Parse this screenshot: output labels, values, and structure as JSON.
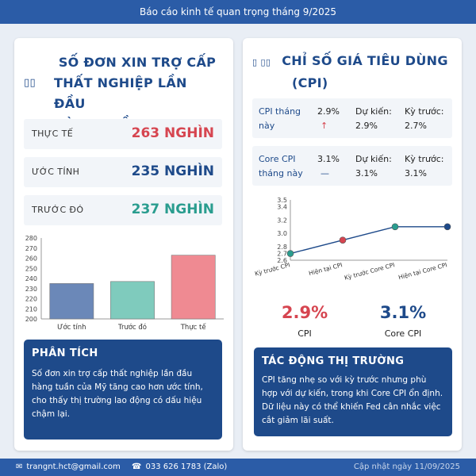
{
  "banner": {
    "title": "Báo cáo kinh tế quan trọng tháng 9/2025"
  },
  "left": {
    "title_line1": "SỐ ĐƠN XIN TRỢ CẤP",
    "title_line2": "THẤT NGHIỆP LẦN ĐẦU",
    "title_line3": "HÀNG TUẦN",
    "title_icon": "▯▯",
    "stats": [
      {
        "label": "THỰC TẾ",
        "value": "263 NGHÌN",
        "color": "#d64550"
      },
      {
        "label": "ƯỚC TÍNH",
        "value": "235 NGHÌN",
        "color": "#1e4a8a"
      },
      {
        "label": "TRƯỚC ĐÓ",
        "value": "237 NGHÌN",
        "color": "#2a9d8f"
      }
    ],
    "analysis": {
      "header": "PHÂN TÍCH",
      "text": "Số đơn xin trợ cấp thất nghiệp lần đầu hàng tuần của Mỹ tăng cao hơn ước tính, cho thấy thị trường lao động có dấu hiệu chậm lại."
    }
  },
  "right": {
    "title_line1": "CHỈ SỐ GIÁ TIÊU DÙNG",
    "title_line2": "(CPI)",
    "title_icon": "▯ ▯▯",
    "cpi_rows": [
      {
        "label": "CPI tháng này",
        "value": "2.9%",
        "trend": "↑",
        "expected": "Dự kiến: 2.9%",
        "previous": "Kỳ trước: 2.7%"
      },
      {
        "label": "Core CPI tháng này",
        "value": "3.1%",
        "trend": "—",
        "expected": "Dự kiến: 3.1%",
        "previous": "Kỳ trước: 3.1%"
      }
    ],
    "big_cpi": {
      "value": "2.9%",
      "label": "CPI",
      "color": "#d64550"
    },
    "big_core": {
      "value": "3.1%",
      "label": "Core CPI",
      "color": "#1e4a8a"
    },
    "impact": {
      "header": "TÁC ĐỘNG THỊ TRƯỜNG",
      "text": "CPI tăng nhẹ so với kỳ trước nhưng phù hợp với dự kiến, trong khi Core CPI ổn định. Dữ liệu này có thể khiến Fed cân nhắc việc cắt giảm lãi suất."
    }
  },
  "footer": {
    "email": "trangnt.hct@gmail.com",
    "phone": "033 626 1783 (Zalo)",
    "updated": "Cập nhật ngày 11/09/2025",
    "email_icon": "envelope-icon",
    "phone_icon": "phone-icon"
  },
  "chart_data": [
    {
      "type": "bar",
      "categories": [
        "Ước tính",
        "Trước đó",
        "Thực tế"
      ],
      "values": [
        235,
        237,
        263
      ],
      "colors": [
        "#6b88b8",
        "#7fcbbd",
        "#ef8a92"
      ],
      "ylim": [
        200,
        280
      ],
      "yticks": [
        200,
        210,
        220,
        230,
        240,
        250,
        260,
        270,
        280
      ],
      "grid": false,
      "title": "",
      "xlabel": "",
      "ylabel": ""
    },
    {
      "type": "line",
      "categories": [
        "Kỳ trước CPI",
        "Hiện tại CPI",
        "Kỳ trước Core CPI",
        "Hiện tại Core CPI"
      ],
      "values": [
        2.7,
        2.9,
        3.1,
        3.1
      ],
      "point_colors": [
        "#2a9d8f",
        "#d64550",
        "#2a9d8f",
        "#1e4a8a"
      ],
      "line_color": "#1e4a8a",
      "ylim": [
        2.6,
        3.5
      ],
      "yticks": [
        2.6,
        2.7,
        2.8,
        3.0,
        3.2,
        3.4,
        3.5
      ],
      "grid": false,
      "title": "",
      "xlabel": "",
      "ylabel": ""
    }
  ]
}
